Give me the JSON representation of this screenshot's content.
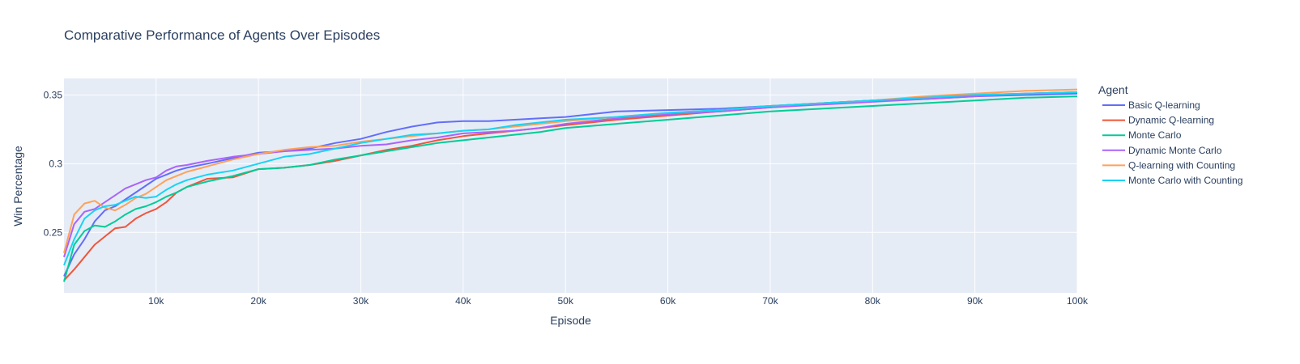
{
  "chart_data": {
    "type": "line",
    "title": "Comparative Performance of Agents Over Episodes",
    "xlabel": "Episode",
    "ylabel": "Win Percentage",
    "xlim": [
      1000,
      100000
    ],
    "ylim": [
      0.206,
      0.362
    ],
    "x_ticks": [
      10000,
      20000,
      30000,
      40000,
      50000,
      60000,
      70000,
      80000,
      90000,
      100000
    ],
    "x_tick_labels": [
      "10k",
      "20k",
      "30k",
      "40k",
      "50k",
      "60k",
      "70k",
      "80k",
      "90k",
      "100k"
    ],
    "y_ticks": [
      0.25,
      0.3,
      0.35
    ],
    "y_tick_labels": [
      "0.25",
      "0.3",
      "0.35"
    ],
    "grid": true,
    "legend_title": "Agent",
    "legend_position": "right",
    "plot_background": "#e5ecf6",
    "x": [
      1000,
      2000,
      3000,
      4000,
      5000,
      6000,
      7000,
      8000,
      9000,
      10000,
      11000,
      12000,
      13000,
      15000,
      17500,
      20000,
      22500,
      25000,
      27500,
      30000,
      32500,
      35000,
      37500,
      40000,
      42500,
      45000,
      47500,
      50000,
      55000,
      60000,
      65000,
      70000,
      75000,
      80000,
      85000,
      90000,
      95000,
      100000
    ],
    "series": [
      {
        "name": "Basic Q-learning",
        "color": "#636efa",
        "values": [
          0.218,
          0.234,
          0.245,
          0.258,
          0.266,
          0.269,
          0.274,
          0.279,
          0.284,
          0.289,
          0.292,
          0.295,
          0.297,
          0.3,
          0.304,
          0.308,
          0.309,
          0.311,
          0.315,
          0.318,
          0.323,
          0.327,
          0.33,
          0.331,
          0.331,
          0.332,
          0.333,
          0.334,
          0.338,
          0.339,
          0.34,
          0.342,
          0.344,
          0.346,
          0.347,
          0.349,
          0.35,
          0.351
        ]
      },
      {
        "name": "Dynamic Q-learning",
        "color": "#ef553b",
        "values": [
          0.215,
          0.223,
          0.232,
          0.241,
          0.247,
          0.253,
          0.254,
          0.26,
          0.264,
          0.267,
          0.272,
          0.279,
          0.283,
          0.289,
          0.29,
          0.296,
          0.297,
          0.299,
          0.302,
          0.306,
          0.31,
          0.313,
          0.317,
          0.32,
          0.322,
          0.324,
          0.326,
          0.328,
          0.332,
          0.335,
          0.338,
          0.341,
          0.344,
          0.346,
          0.348,
          0.35,
          0.351,
          0.352
        ]
      },
      {
        "name": "Monte Carlo",
        "color": "#00cc96",
        "values": [
          0.214,
          0.241,
          0.251,
          0.255,
          0.254,
          0.258,
          0.263,
          0.267,
          0.269,
          0.272,
          0.276,
          0.279,
          0.283,
          0.287,
          0.291,
          0.296,
          0.297,
          0.299,
          0.303,
          0.306,
          0.309,
          0.312,
          0.315,
          0.317,
          0.319,
          0.321,
          0.323,
          0.326,
          0.329,
          0.332,
          0.335,
          0.338,
          0.34,
          0.342,
          0.344,
          0.346,
          0.348,
          0.349
        ]
      },
      {
        "name": "Dynamic Monte Carlo",
        "color": "#ab63fa",
        "values": [
          0.232,
          0.256,
          0.265,
          0.267,
          0.272,
          0.277,
          0.282,
          0.285,
          0.288,
          0.29,
          0.295,
          0.298,
          0.299,
          0.302,
          0.305,
          0.307,
          0.309,
          0.31,
          0.311,
          0.313,
          0.314,
          0.317,
          0.319,
          0.322,
          0.323,
          0.324,
          0.326,
          0.329,
          0.333,
          0.336,
          0.338,
          0.341,
          0.343,
          0.345,
          0.347,
          0.349,
          0.351,
          0.352
        ]
      },
      {
        "name": "Q-learning with Counting",
        "color": "#ffa15a",
        "values": [
          0.235,
          0.263,
          0.271,
          0.273,
          0.268,
          0.266,
          0.27,
          0.275,
          0.278,
          0.283,
          0.288,
          0.291,
          0.294,
          0.298,
          0.303,
          0.307,
          0.31,
          0.312,
          0.313,
          0.316,
          0.318,
          0.32,
          0.322,
          0.324,
          0.325,
          0.327,
          0.329,
          0.331,
          0.334,
          0.337,
          0.339,
          0.342,
          0.344,
          0.346,
          0.349,
          0.351,
          0.353,
          0.354
        ]
      },
      {
        "name": "Monte Carlo with Counting",
        "color": "#19d3f3",
        "values": [
          0.226,
          0.245,
          0.26,
          0.266,
          0.269,
          0.27,
          0.273,
          0.276,
          0.275,
          0.276,
          0.281,
          0.285,
          0.288,
          0.292,
          0.295,
          0.3,
          0.305,
          0.307,
          0.311,
          0.315,
          0.318,
          0.321,
          0.322,
          0.324,
          0.325,
          0.328,
          0.33,
          0.332,
          0.334,
          0.337,
          0.339,
          0.342,
          0.344,
          0.346,
          0.348,
          0.35,
          0.351,
          0.352
        ]
      }
    ]
  }
}
